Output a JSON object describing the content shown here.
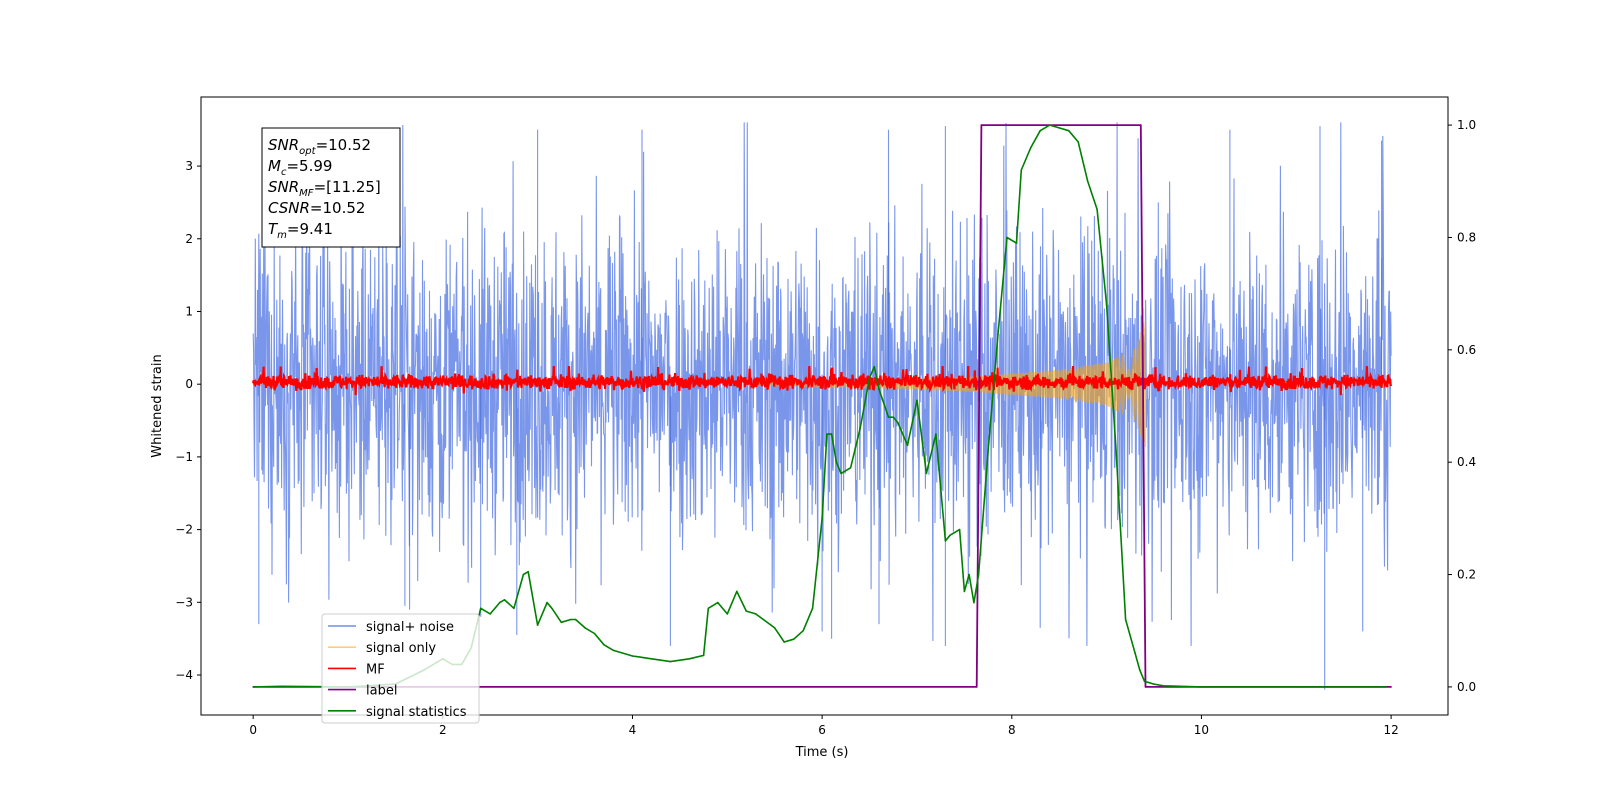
{
  "chart_data": {
    "type": "line",
    "xlabel": "Time (s)",
    "ylabel": "Whitened strain",
    "xlim": [
      -0.55,
      12.6
    ],
    "ylim": [
      -4.55,
      3.95
    ],
    "y2lim": [
      -0.05,
      1.05
    ],
    "xticks": [
      0,
      2,
      4,
      6,
      8,
      10,
      12
    ],
    "yticks": [
      -4,
      -3,
      -2,
      -1,
      0,
      1,
      2,
      3
    ],
    "y2ticks": [
      0.0,
      0.2,
      0.4,
      0.6,
      0.8,
      1.0
    ],
    "annotation": {
      "lines": [
        {
          "base": "SNR",
          "sub": "opt",
          "value": "=10.52"
        },
        {
          "base": "M",
          "sub": "c",
          "value": "=5.99"
        },
        {
          "base": "SNR",
          "sub": "MF",
          "value": "=[11.25]"
        },
        {
          "base": "CSNR",
          "sub": "",
          "value": "=10.52"
        },
        {
          "base": "T",
          "sub": "m",
          "value": "=9.41"
        }
      ]
    },
    "legend": {
      "placement": "lower-left",
      "entries": [
        {
          "label": "signal+ noise",
          "color": "#4169e1"
        },
        {
          "label": "signal only",
          "color": "#ffa500"
        },
        {
          "label": "MF",
          "color": "#ff0000"
        },
        {
          "label": "label",
          "color": "#800080"
        },
        {
          "label": "signal statistics",
          "color": "#008000"
        }
      ]
    },
    "series": [
      {
        "name": "signal+ noise",
        "color": "#4169e1",
        "axis": "left",
        "kind": "noise",
        "t_range": [
          0,
          12
        ],
        "approx_envelope": [
          -2.5,
          2.5
        ],
        "peak_values": [
          [
            0.06,
            -3.3
          ],
          [
            1.6,
            -3.05
          ],
          [
            1.65,
            -3.1
          ],
          [
            2.4,
            -3.2
          ],
          [
            2.78,
            -3.45
          ],
          [
            4.4,
            -3.6
          ],
          [
            6.0,
            -3.4
          ],
          [
            6.1,
            -3.5
          ],
          [
            6.6,
            -3.3
          ],
          [
            7.3,
            -3.6
          ],
          [
            7.3,
            3.55
          ],
          [
            8.3,
            -3.35
          ],
          [
            11.7,
            -3.4
          ],
          [
            11.25,
            3.55
          ],
          [
            11.3,
            -4.2
          ],
          [
            3.0,
            3.5
          ],
          [
            4.1,
            3.5
          ],
          [
            6.7,
            3.5
          ],
          [
            10.3,
            3.5
          ],
          [
            11.9,
            3.35
          ]
        ]
      },
      {
        "name": "signal only",
        "color": "#ffa500",
        "axis": "left",
        "kind": "chirp",
        "t_range": [
          5.3,
          9.41
        ],
        "amplitude_envelope": [
          [
            5.3,
            0.02
          ],
          [
            6.5,
            0.05
          ],
          [
            7.5,
            0.1
          ],
          [
            8.5,
            0.2
          ],
          [
            9.0,
            0.3
          ],
          [
            9.3,
            0.5
          ],
          [
            9.4,
            0.9
          ]
        ]
      },
      {
        "name": "MF",
        "color": "#ff0000",
        "axis": "left",
        "kind": "noise",
        "t_range": [
          0,
          12
        ],
        "approx_envelope": [
          -0.15,
          0.25
        ]
      },
      {
        "name": "label",
        "color": "#800080",
        "axis": "right",
        "x": [
          0.0,
          7.63,
          7.68,
          9.36,
          9.41,
          12.0
        ],
        "y": [
          0.0,
          0.0,
          1.0,
          1.0,
          0.0,
          0.0
        ]
      },
      {
        "name": "signal statistics",
        "color": "#008000",
        "axis": "right",
        "x": [
          0.0,
          0.3,
          1.0,
          1.5,
          1.8,
          2.0,
          2.1,
          2.2,
          2.3,
          2.4,
          2.5,
          2.6,
          2.65,
          2.75,
          2.85,
          2.9,
          3.0,
          3.1,
          3.15,
          3.25,
          3.35,
          3.4,
          3.5,
          3.6,
          3.7,
          3.8,
          4.0,
          4.2,
          4.4,
          4.6,
          4.75,
          4.8,
          4.9,
          5.0,
          5.1,
          5.2,
          5.3,
          5.5,
          5.6,
          5.7,
          5.8,
          5.9,
          6.0,
          6.05,
          6.1,
          6.15,
          6.2,
          6.3,
          6.4,
          6.5,
          6.55,
          6.6,
          6.7,
          6.75,
          6.8,
          6.9,
          7.0,
          7.1,
          7.2,
          7.3,
          7.35,
          7.45,
          7.5,
          7.55,
          7.6,
          7.65,
          7.75,
          7.85,
          7.95,
          8.05,
          8.1,
          8.2,
          8.3,
          8.4,
          8.5,
          8.6,
          8.7,
          8.8,
          8.9,
          9.0,
          9.1,
          9.2,
          9.3,
          9.35,
          9.4,
          9.5,
          9.6,
          10.0,
          11.0,
          11.95
        ],
        "y": [
          0.0,
          0.001,
          0.0,
          0.005,
          0.03,
          0.05,
          0.04,
          0.04,
          0.07,
          0.14,
          0.13,
          0.15,
          0.155,
          0.14,
          0.2,
          0.205,
          0.11,
          0.15,
          0.14,
          0.115,
          0.12,
          0.12,
          0.105,
          0.095,
          0.075,
          0.065,
          0.055,
          0.05,
          0.045,
          0.05,
          0.056,
          0.14,
          0.15,
          0.13,
          0.17,
          0.135,
          0.13,
          0.105,
          0.08,
          0.085,
          0.1,
          0.14,
          0.3,
          0.45,
          0.45,
          0.4,
          0.38,
          0.39,
          0.46,
          0.55,
          0.57,
          0.53,
          0.48,
          0.48,
          0.47,
          0.43,
          0.51,
          0.38,
          0.45,
          0.26,
          0.27,
          0.28,
          0.17,
          0.2,
          0.15,
          0.2,
          0.42,
          0.62,
          0.8,
          0.79,
          0.92,
          0.96,
          0.99,
          1.0,
          0.995,
          0.99,
          0.97,
          0.9,
          0.85,
          0.68,
          0.42,
          0.12,
          0.06,
          0.03,
          0.01,
          0.005,
          0.002,
          0.0,
          0.0,
          0.0
        ]
      }
    ]
  }
}
